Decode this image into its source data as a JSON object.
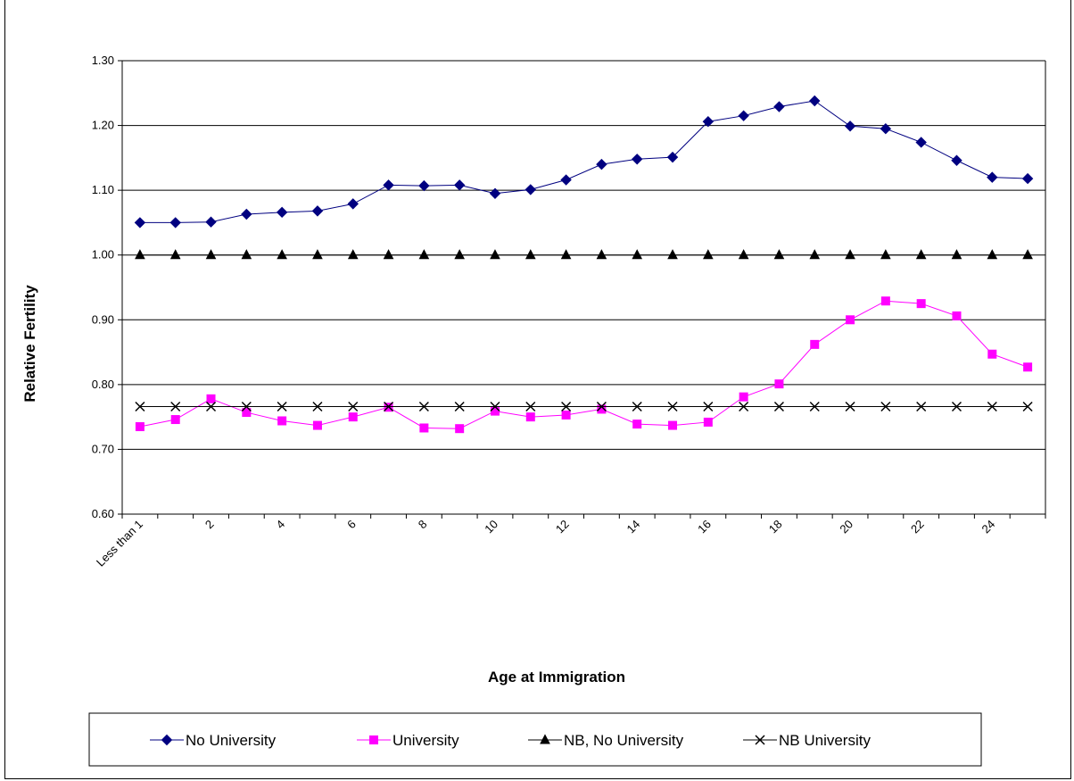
{
  "chart_data": {
    "type": "line",
    "xlabel": "Age at Immigration",
    "ylabel": "Relative Fertility",
    "ylim": [
      0.6,
      1.3
    ],
    "y_ticks": [
      "0.60",
      "0.70",
      "0.80",
      "0.90",
      "1.00",
      "1.10",
      "1.20",
      "1.30"
    ],
    "x_tick_labels": [
      "Less than 1",
      "2",
      "4",
      "6",
      "8",
      "10",
      "12",
      "14",
      "16",
      "18",
      "20",
      "22",
      "24"
    ],
    "x": [
      0,
      1,
      2,
      3,
      4,
      5,
      6,
      7,
      8,
      9,
      10,
      11,
      12,
      13,
      14,
      15,
      16,
      17,
      18,
      19,
      20,
      21,
      22,
      23,
      24,
      25
    ],
    "grid": "horizontal",
    "legend_position": "bottom",
    "series": [
      {
        "name": "No University",
        "color": "#000080",
        "marker": "diamond",
        "values": [
          1.05,
          1.05,
          1.051,
          1.063,
          1.066,
          1.068,
          1.079,
          1.108,
          1.107,
          1.108,
          1.095,
          1.101,
          1.116,
          1.14,
          1.148,
          1.151,
          1.206,
          1.215,
          1.229,
          1.238,
          1.199,
          1.195,
          1.174,
          1.146,
          1.12,
          1.118
        ]
      },
      {
        "name": "University",
        "color": "#FF00FF",
        "marker": "square",
        "values": [
          0.735,
          0.746,
          0.778,
          0.757,
          0.744,
          0.737,
          0.75,
          0.765,
          0.733,
          0.732,
          0.759,
          0.75,
          0.753,
          0.762,
          0.739,
          0.737,
          0.742,
          0.781,
          0.801,
          0.862,
          0.9,
          0.929,
          0.925,
          0.906,
          0.847,
          0.827
        ]
      },
      {
        "name": "NB, No University",
        "color": "#000000",
        "marker": "triangle",
        "values": [
          1.0,
          1.0,
          1.0,
          1.0,
          1.0,
          1.0,
          1.0,
          1.0,
          1.0,
          1.0,
          1.0,
          1.0,
          1.0,
          1.0,
          1.0,
          1.0,
          1.0,
          1.0,
          1.0,
          1.0,
          1.0,
          1.0,
          1.0,
          1.0,
          1.0,
          1.0
        ]
      },
      {
        "name": "NB University",
        "color": "#000000",
        "marker": "cross",
        "values": [
          0.766,
          0.766,
          0.766,
          0.766,
          0.766,
          0.766,
          0.766,
          0.766,
          0.766,
          0.766,
          0.766,
          0.766,
          0.766,
          0.766,
          0.766,
          0.766,
          0.766,
          0.766,
          0.766,
          0.766,
          0.766,
          0.766,
          0.766,
          0.766,
          0.766,
          0.766
        ]
      }
    ]
  }
}
